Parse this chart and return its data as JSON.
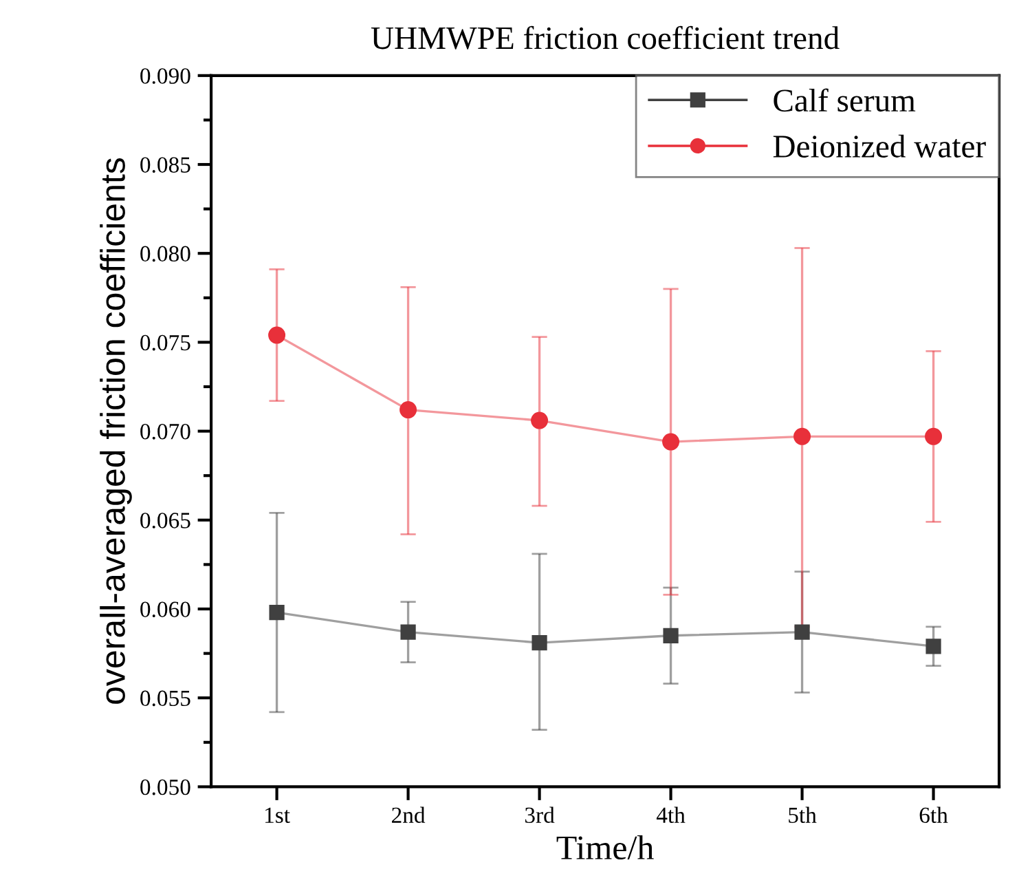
{
  "chart_data": {
    "type": "line",
    "title": "UHMWPE friction coefficient trend",
    "xlabel": "Time/h",
    "ylabel": "overall-averaged friction coefficients",
    "categories": [
      "1st",
      "2nd",
      "3rd",
      "4th",
      "5th",
      "6th"
    ],
    "series": [
      {
        "name": "Calf serum",
        "color": "#404040",
        "marker": "square",
        "values": [
          0.0598,
          0.0587,
          0.0581,
          0.0585,
          0.0587,
          0.0579
        ],
        "errors": [
          [
            0.0542,
            0.0654
          ],
          [
            0.057,
            0.0604
          ],
          [
            0.0532,
            0.0631
          ],
          [
            0.0558,
            0.0612
          ],
          [
            0.0553,
            0.0621
          ],
          [
            0.0568,
            0.059
          ]
        ]
      },
      {
        "name": "Deionized water",
        "color": "#e8303a",
        "marker": "circle",
        "values": [
          0.0754,
          0.0712,
          0.0706,
          0.0694,
          0.0697,
          0.0697
        ],
        "errors": [
          [
            0.0717,
            0.0791
          ],
          [
            0.0642,
            0.0781
          ],
          [
            0.0658,
            0.0753
          ],
          [
            0.0608,
            0.078
          ],
          [
            0.059,
            0.0803
          ],
          [
            0.0649,
            0.0745
          ]
        ]
      }
    ],
    "ylim": [
      0.05,
      0.09
    ],
    "yticks": [
      {
        "value": 0.05,
        "label": "0.050"
      },
      {
        "value": 0.055,
        "label": "0.055"
      },
      {
        "value": 0.06,
        "label": "0.060"
      },
      {
        "value": 0.065,
        "label": "0.065"
      },
      {
        "value": 0.07,
        "label": "0.070"
      },
      {
        "value": 0.075,
        "label": "0.075"
      },
      {
        "value": 0.08,
        "label": "0.080"
      },
      {
        "value": 0.085,
        "label": "0.085"
      },
      {
        "value": 0.09,
        "label": "0.090"
      }
    ],
    "grid": false,
    "legend": "top right",
    "line_style": "solid"
  }
}
